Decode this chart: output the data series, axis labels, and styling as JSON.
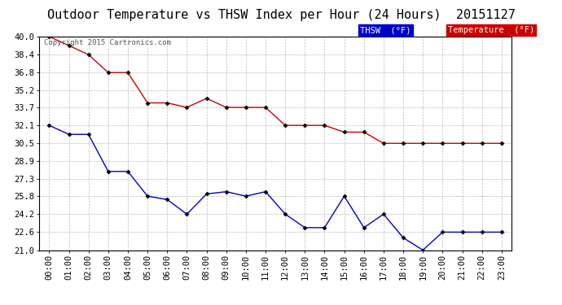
{
  "title": "Outdoor Temperature vs THSW Index per Hour (24 Hours)  20151127",
  "copyright": "Copyright 2015 Cartronics.com",
  "hours": [
    "00:00",
    "01:00",
    "02:00",
    "03:00",
    "04:00",
    "05:00",
    "06:00",
    "07:00",
    "08:00",
    "09:00",
    "10:00",
    "11:00",
    "12:00",
    "13:00",
    "14:00",
    "15:00",
    "16:00",
    "17:00",
    "18:00",
    "19:00",
    "20:00",
    "21:00",
    "22:00",
    "23:00"
  ],
  "temperature": [
    40.0,
    39.2,
    38.4,
    36.8,
    36.8,
    34.1,
    34.1,
    33.7,
    34.5,
    33.7,
    33.7,
    33.7,
    32.1,
    32.1,
    32.1,
    31.5,
    31.5,
    30.5,
    30.5,
    30.5,
    30.5,
    30.5,
    30.5,
    30.5
  ],
  "thsw": [
    32.1,
    31.3,
    31.3,
    28.0,
    28.0,
    25.8,
    25.5,
    24.2,
    26.0,
    26.2,
    25.8,
    26.2,
    24.2,
    23.0,
    23.0,
    25.8,
    23.0,
    24.2,
    22.1,
    21.0,
    22.6,
    22.6,
    22.6,
    22.6
  ],
  "temp_color": "#cc0000",
  "thsw_color": "#0000cc",
  "ylim_min": 21.0,
  "ylim_max": 40.0,
  "yticks": [
    21.0,
    22.6,
    24.2,
    25.8,
    27.3,
    28.9,
    30.5,
    32.1,
    33.7,
    35.2,
    36.8,
    38.4,
    40.0
  ],
  "background_color": "#ffffff",
  "plot_bg_color": "#ffffff",
  "grid_color": "#aaaaaa",
  "title_fontsize": 11,
  "tick_fontsize": 7.5,
  "legend_thsw_label": "THSW  (°F)",
  "legend_temp_label": "Temperature  (°F)",
  "legend_thsw_bg": "#0000cc",
  "legend_temp_bg": "#cc0000"
}
